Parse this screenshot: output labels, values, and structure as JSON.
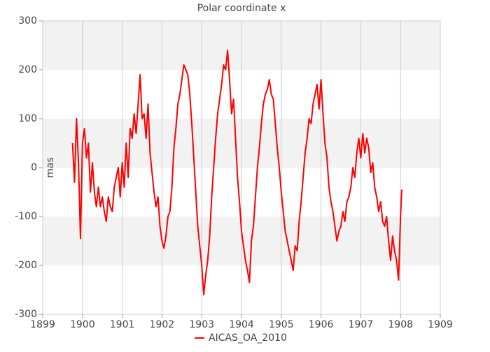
{
  "chart_data": {
    "type": "line",
    "title": "Polar coordinate x",
    "y_label": "mas",
    "xlim": [
      1899,
      1909
    ],
    "xticks": [
      1899,
      1900,
      1901,
      1902,
      1903,
      1904,
      1905,
      1906,
      1907,
      1908,
      1909
    ],
    "ylim": [
      -300,
      300
    ],
    "yticks": [
      -300,
      -200,
      -100,
      0,
      100,
      200,
      300
    ],
    "grid": true,
    "legend": "bottom",
    "x": [
      1899.75,
      1899.8,
      1899.85,
      1899.9,
      1899.95,
      1900.0,
      1900.05,
      1900.1,
      1900.15,
      1900.2,
      1900.25,
      1900.3,
      1900.35,
      1900.4,
      1900.45,
      1900.5,
      1900.55,
      1900.6,
      1900.65,
      1900.7,
      1900.75,
      1900.8,
      1900.85,
      1900.9,
      1900.95,
      1901.0,
      1901.05,
      1901.1,
      1901.15,
      1901.2,
      1901.25,
      1901.3,
      1901.35,
      1901.4,
      1901.45,
      1901.5,
      1901.55,
      1901.6,
      1901.65,
      1901.7,
      1901.75,
      1901.8,
      1901.85,
      1901.9,
      1901.95,
      1902.0,
      1902.05,
      1902.1,
      1902.15,
      1902.2,
      1902.25,
      1902.3,
      1902.35,
      1902.4,
      1902.45,
      1902.5,
      1902.55,
      1902.6,
      1902.65,
      1902.7,
      1902.75,
      1902.8,
      1902.85,
      1902.9,
      1902.95,
      1903.0,
      1903.05,
      1903.1,
      1903.15,
      1903.2,
      1903.25,
      1903.3,
      1903.35,
      1903.4,
      1903.45,
      1903.5,
      1903.55,
      1903.6,
      1903.65,
      1903.7,
      1903.75,
      1903.8,
      1903.85,
      1903.9,
      1903.95,
      1904.0,
      1904.05,
      1904.1,
      1904.15,
      1904.2,
      1904.25,
      1904.3,
      1904.35,
      1904.4,
      1904.45,
      1904.5,
      1904.55,
      1904.6,
      1904.65,
      1904.7,
      1904.75,
      1904.8,
      1904.85,
      1904.9,
      1904.95,
      1905.0,
      1905.05,
      1905.1,
      1905.15,
      1905.2,
      1905.25,
      1905.3,
      1905.35,
      1905.4,
      1905.45,
      1905.5,
      1905.55,
      1905.6,
      1905.65,
      1905.7,
      1905.75,
      1905.8,
      1905.85,
      1905.9,
      1905.95,
      1906.0,
      1906.05,
      1906.1,
      1906.15,
      1906.2,
      1906.25,
      1906.3,
      1906.35,
      1906.4,
      1906.45,
      1906.5,
      1906.55,
      1906.6,
      1906.65,
      1906.7,
      1906.75,
      1906.8,
      1906.85,
      1906.9,
      1906.95,
      1907.0,
      1907.05,
      1907.1,
      1907.15,
      1907.2,
      1907.25,
      1907.3,
      1907.35,
      1907.4,
      1907.45,
      1907.5,
      1907.55,
      1907.6,
      1907.65,
      1907.7,
      1907.75,
      1907.8,
      1907.85,
      1907.9,
      1907.95,
      1908.0,
      1908.03
    ],
    "series": [
      {
        "name": "AICAS_OA_2010",
        "color": "#ff0000",
        "values": [
          50,
          -30,
          100,
          10,
          -145,
          50,
          80,
          20,
          50,
          -50,
          10,
          -50,
          -80,
          -40,
          -80,
          -60,
          -90,
          -110,
          -60,
          -80,
          -90,
          -40,
          -20,
          0,
          -60,
          10,
          -40,
          50,
          -20,
          80,
          60,
          110,
          70,
          130,
          190,
          100,
          110,
          60,
          130,
          30,
          -10,
          -50,
          -80,
          -60,
          -120,
          -150,
          -165,
          -140,
          -100,
          -90,
          -40,
          40,
          80,
          130,
          150,
          180,
          210,
          200,
          190,
          150,
          90,
          20,
          -50,
          -120,
          -160,
          -200,
          -260,
          -220,
          -190,
          -140,
          -60,
          0,
          60,
          110,
          140,
          170,
          210,
          200,
          240,
          180,
          110,
          140,
          60,
          -20,
          -70,
          -130,
          -160,
          -190,
          -210,
          -235,
          -150,
          -120,
          -60,
          0,
          40,
          90,
          130,
          150,
          160,
          180,
          150,
          140,
          90,
          40,
          0,
          -50,
          -90,
          -130,
          -150,
          -170,
          -190,
          -210,
          -160,
          -170,
          -110,
          -70,
          -20,
          30,
          60,
          100,
          90,
          130,
          150,
          170,
          120,
          180,
          110,
          50,
          20,
          -40,
          -70,
          -90,
          -120,
          -150,
          -130,
          -120,
          -90,
          -110,
          -70,
          -60,
          -40,
          0,
          -20,
          30,
          60,
          20,
          70,
          30,
          60,
          40,
          -10,
          10,
          -40,
          -60,
          -90,
          -70,
          -110,
          -120,
          -100,
          -150,
          -190,
          -140,
          -170,
          -190,
          -230,
          -100,
          -45
        ]
      }
    ]
  }
}
